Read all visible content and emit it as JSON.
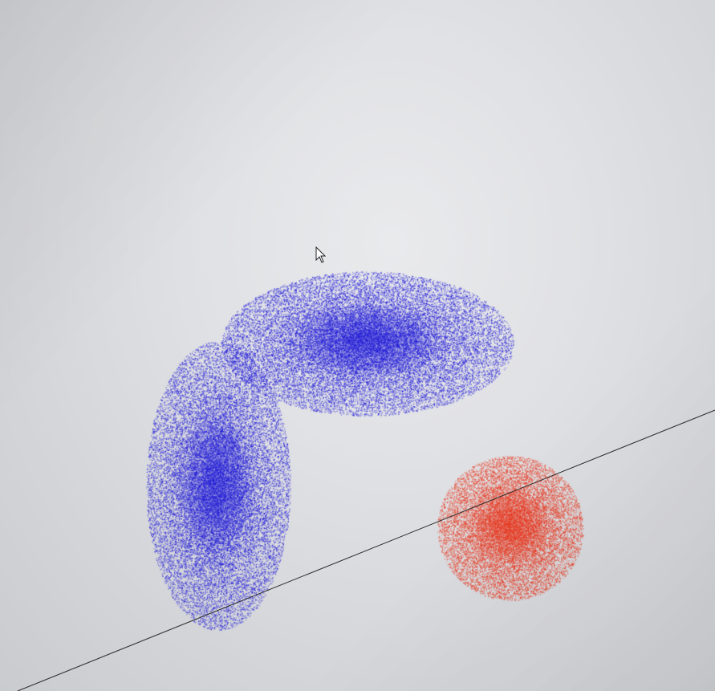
{
  "scene": {
    "clusters": [
      {
        "name": "blue-horizontal-ellipse",
        "color": "#1a14d6",
        "shape": "ellipse"
      },
      {
        "name": "blue-vertical-ellipse",
        "color": "#1a14d6",
        "shape": "ellipse"
      },
      {
        "name": "red-circle",
        "color": "#e8351c",
        "shape": "circle"
      }
    ],
    "line_color": "#2a2a2a",
    "cursor_icon": "arrow-cursor-icon"
  }
}
